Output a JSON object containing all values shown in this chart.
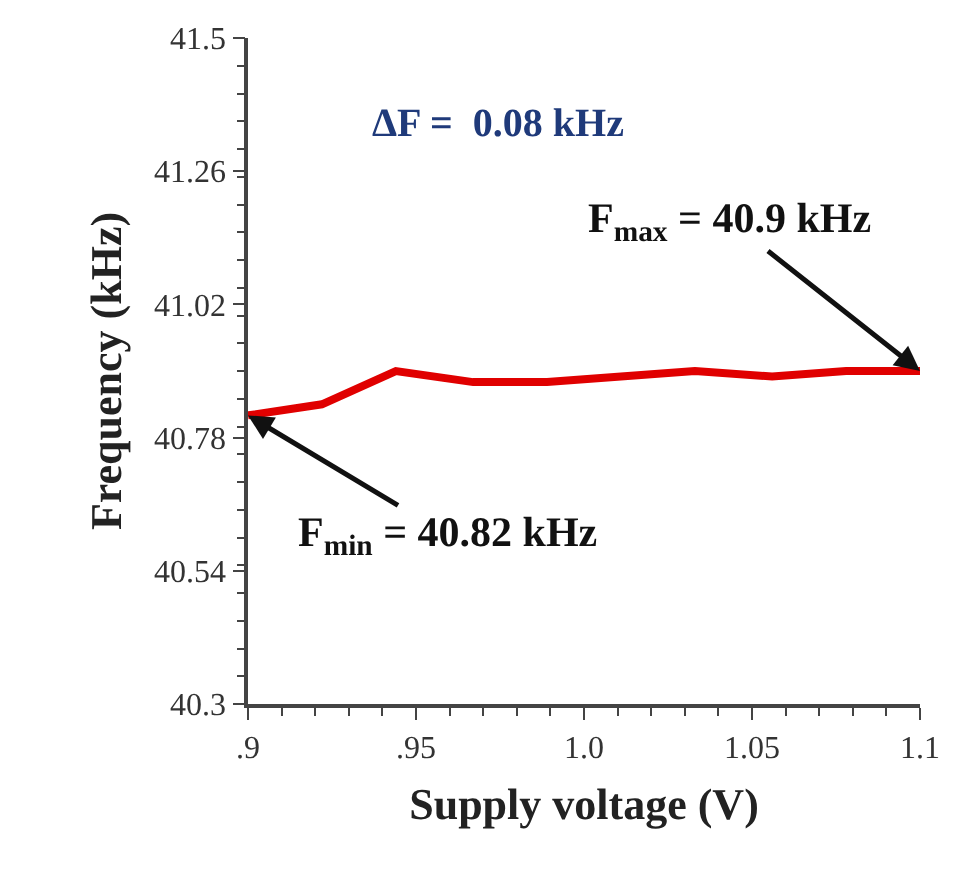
{
  "chart_data": {
    "type": "line",
    "xlabel": "Supply voltage (V)",
    "ylabel": "Frequency (kHz)",
    "x": [
      0.9,
      0.922,
      0.944,
      0.967,
      0.989,
      1.011,
      1.033,
      1.056,
      1.078,
      1.1
    ],
    "series": [
      {
        "color": "#e00000",
        "values": [
          40.82,
          40.84,
          40.9,
          40.88,
          40.88,
          40.89,
          40.9,
          40.89,
          40.9,
          40.9
        ]
      }
    ],
    "xlim": [
      0.9,
      1.1
    ],
    "xticks": [
      {
        "value": 0.9,
        "label": ".9"
      },
      {
        "value": 0.95,
        "label": ".95"
      },
      {
        "value": 1.0,
        "label": "1.0"
      },
      {
        "value": 1.05,
        "label": "1.05"
      },
      {
        "value": 1.1,
        "label": "1.1"
      }
    ],
    "ylim": [
      40.3,
      41.5
    ],
    "yticks": [
      40.3,
      40.54,
      40.78,
      41.02,
      41.26,
      41.5
    ],
    "annotations": [
      "ΔF =  0.08 kHz",
      {
        "text": "F$_{max}$ = 40.9 kHz",
        "x": 1.1,
        "y": 40.9
      },
      {
        "text": "F$_{min}$ = 40.82 kHz",
        "x": 0.9,
        "y": 40.82
      }
    ],
    "grid": false,
    "legend": false,
    "line_style": "solid"
  }
}
